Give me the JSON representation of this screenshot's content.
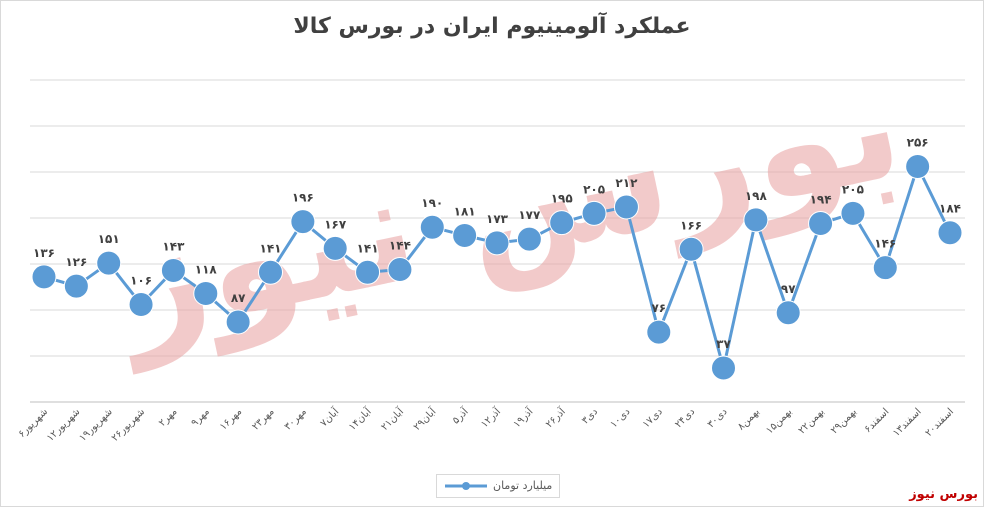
{
  "header": {
    "title": "عملکرد آلومینیوم ایران در بورس کالا"
  },
  "brand": {
    "text": "بورس نیوز",
    "color": "#c00000"
  },
  "watermark": {
    "text": "بورس نیوز",
    "color": "#e8a0a0"
  },
  "chart_data": {
    "type": "line",
    "title": "عملکرد آلومینیوم ایران در بورس کالا",
    "xlabel": "",
    "ylabel": "",
    "ylim": [
      0,
      350
    ],
    "grid": true,
    "legend_position": "bottom",
    "series_color": "#5b9bd5",
    "categories": [
      "۶شهریور",
      "۱۲شهریور",
      "۱۹شهریور",
      "۲۶شهریور",
      "۲مهر",
      "۹مهر",
      "۱۶مهر",
      "۲۳مهر",
      "۳۰مهر",
      "۷آبان",
      "۱۴آبان",
      "۲۱آبان",
      "۲۹آبان",
      "۵آذر",
      "۱۲آذر",
      "۱۹آذر",
      "۲۶آذر",
      "۳دی",
      "۱۰دی",
      "۱۷دی",
      "۲۴دی",
      "۳۰دی",
      "۸بهمن",
      "۱۵بهمن",
      "۲۲بهمن",
      "۲۹بهمن",
      "۶اسفند",
      "۱۳اسفند",
      "۲۰اسفند"
    ],
    "series": [
      {
        "name": "میلیارد تومان",
        "values": [
          136,
          126,
          151,
          106,
          143,
          118,
          87,
          141,
          196,
          167,
          141,
          144,
          190,
          181,
          173,
          177,
          195,
          205,
          212,
          76,
          166,
          37,
          198,
          97,
          194,
          205,
          146,
          256,
          184
        ],
        "labels": [
          "۱۳۶",
          "۱۲۶",
          "۱۵۱",
          "۱۰۶",
          "۱۴۳",
          "۱۱۸",
          "۸۷",
          "۱۴۱",
          "۱۹۶",
          "۱۶۷",
          "۱۴۱",
          "۱۴۴",
          "۱۹۰",
          "۱۸۱",
          "۱۷۳",
          "۱۷۷",
          "۱۹۵",
          "۲۰۵",
          "۲۱۲",
          "۷۶",
          "۱۶۶",
          "۳۷",
          "۱۹۸",
          "۹۷",
          "۱۹۴",
          "۲۰۵",
          "۱۴۶",
          "۲۵۶",
          "۱۸۴"
        ]
      }
    ]
  }
}
